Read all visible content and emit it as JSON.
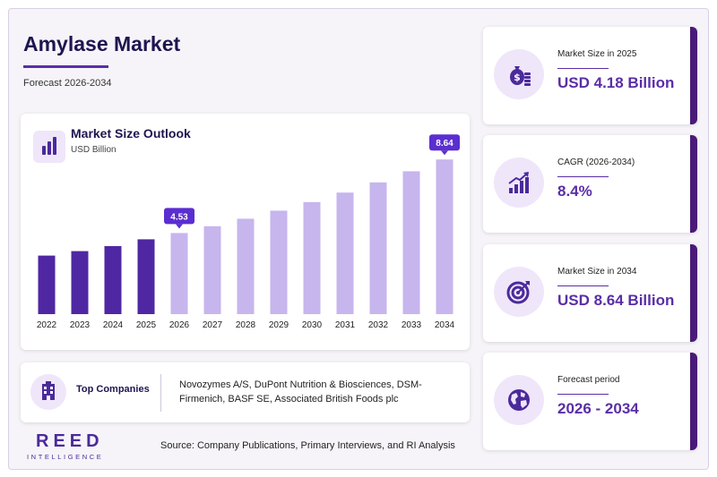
{
  "header": {
    "title": "Amylase Market",
    "subtitle": "Forecast 2026-2034"
  },
  "chart_card": {
    "title": "Market Size Outlook",
    "unit": "USD Billion"
  },
  "chart_data": {
    "type": "bar",
    "title": "Market Size Outlook",
    "ylabel": "USD Billion",
    "categories": [
      "2022",
      "2023",
      "2024",
      "2025",
      "2026",
      "2027",
      "2028",
      "2029",
      "2030",
      "2031",
      "2032",
      "2033",
      "2034"
    ],
    "values": [
      3.27,
      3.52,
      3.8,
      4.18,
      4.53,
      4.91,
      5.33,
      5.78,
      6.26,
      6.79,
      7.36,
      7.98,
      8.64
    ],
    "labeled": {
      "2026": "4.53",
      "2034": "8.64"
    },
    "historical_color": "#4f27a3",
    "forecast_color": "#c7b5ee",
    "callout_color": "#5a2ed0",
    "ylim": [
      0,
      9
    ],
    "grid": false
  },
  "companies": {
    "label": "Top Companies",
    "text": "Novozymes A/S, DuPont Nutrition & Biosciences, DSM-Firmenich, BASF SE, Associated British Foods plc"
  },
  "footer": {
    "logo_main": "REED",
    "logo_sub": "INTELLIGENCE",
    "source": "Source: Company Publications, Primary Interviews, and RI Analysis"
  },
  "stats": [
    {
      "label": "Market Size in 2025",
      "value": "USD 4.18 Billion",
      "icon": "money-bag-icon"
    },
    {
      "label": "CAGR (2026-2034)",
      "value": "8.4%",
      "icon": "growth-chart-icon"
    },
    {
      "label": "Market Size in 2034",
      "value": "USD 8.64 Billion",
      "icon": "target-icon"
    },
    {
      "label": "Forecast period",
      "value": "2026 - 2034",
      "icon": "globe-icon"
    }
  ],
  "colors": {
    "accent": "#5a2ea6",
    "navy": "#1e1550",
    "card_edge": "#4a1a78"
  }
}
